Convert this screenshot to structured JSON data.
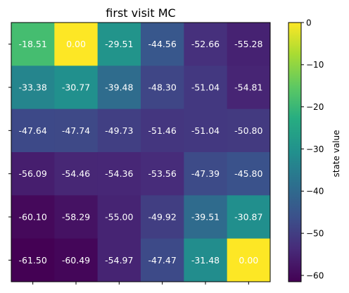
{
  "chart_data": {
    "type": "heatmap",
    "title": "first visit MC",
    "xlabel": "",
    "ylabel": "",
    "colorbar_label": "state value",
    "colormap": "viridis",
    "vmin": -61.5,
    "vmax": 0,
    "colorbar_ticks": [
      0,
      -10,
      -20,
      -30,
      -40,
      -50,
      -60
    ],
    "x_tick_labels": [
      "",
      "",
      "",
      "",
      "",
      ""
    ],
    "y_tick_labels": [
      "",
      "",
      "",
      "",
      "",
      ""
    ],
    "values": [
      [
        -18.51,
        0.0,
        -29.51,
        -44.56,
        -52.66,
        -55.28
      ],
      [
        -33.38,
        -30.77,
        -39.48,
        -48.3,
        -51.04,
        -54.81
      ],
      [
        -47.64,
        -47.74,
        -49.73,
        -51.46,
        -51.04,
        -50.8
      ],
      [
        -56.09,
        -54.46,
        -54.36,
        -53.56,
        -47.39,
        -45.8
      ],
      [
        -60.1,
        -58.29,
        -55.0,
        -49.92,
        -39.51,
        -30.87
      ],
      [
        -61.5,
        -60.49,
        -54.97,
        -47.47,
        -31.48,
        0.0
      ]
    ],
    "cell_labels": [
      [
        "-18.51",
        "0.00",
        "-29.51",
        "-44.56",
        "-52.66",
        "-55.28"
      ],
      [
        "-33.38",
        "-30.77",
        "-39.48",
        "-48.30",
        "-51.04",
        "-54.81"
      ],
      [
        "-47.64",
        "-47.74",
        "-49.73",
        "-51.46",
        "-51.04",
        "-50.80"
      ],
      [
        "-56.09",
        "-54.46",
        "-54.36",
        "-53.56",
        "-47.39",
        "-45.80"
      ],
      [
        "-60.10",
        "-58.29",
        "-55.00",
        "-49.92",
        "-39.51",
        "-30.87"
      ],
      [
        "-61.50",
        "-60.49",
        "-54.97",
        "-47.47",
        "-31.48",
        "0.00"
      ]
    ]
  }
}
